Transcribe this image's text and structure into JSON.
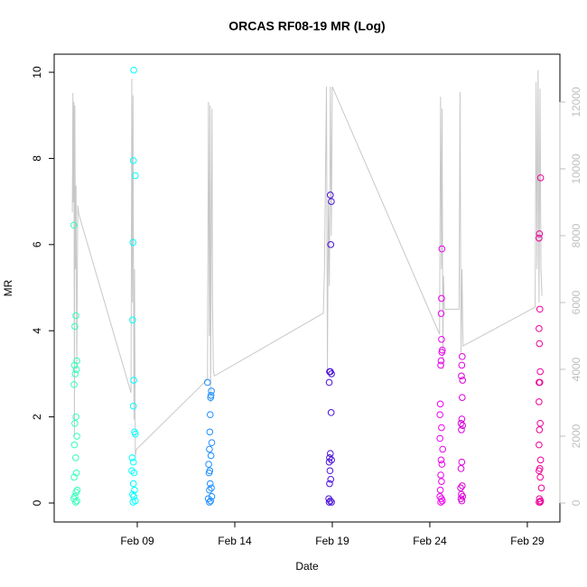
{
  "chart_data": {
    "type": "scatter",
    "title": "ORCAS RF08-19 MR (Log)",
    "x_label": "Date",
    "y_label": "MR",
    "xlim": [
      4.74,
      30.67
    ],
    "xticks": [
      {
        "value": 9,
        "label": "Feb 09"
      },
      {
        "value": 14,
        "label": "Feb 14"
      },
      {
        "value": 19,
        "label": "Feb 19"
      },
      {
        "value": 24,
        "label": "Feb 24"
      },
      {
        "value": 29,
        "label": "Feb 29"
      }
    ],
    "ylim": [
      -0.44,
      10.42
    ],
    "yticks": [
      0,
      2,
      4,
      6,
      8,
      10
    ],
    "y2lim": [
      -568,
      13432
    ],
    "y2ticks": [
      0,
      2000,
      4000,
      6000,
      8000,
      10000,
      12000
    ],
    "series": [
      {
        "color": "#33ffbb",
        "x": [
          5.75,
          5.85,
          5.8,
          5.9,
          5.78,
          5.88,
          5.82,
          5.76,
          5.86,
          5.8,
          5.9,
          5.78,
          5.84,
          5.88,
          5.76,
          5.92,
          5.86,
          5.8,
          5.75,
          5.9,
          5.84
        ],
        "values": [
          6.45,
          4.35,
          4.1,
          3.3,
          3.2,
          3.1,
          3.0,
          2.75,
          2.0,
          1.85,
          1.55,
          1.35,
          1.05,
          0.7,
          0.6,
          0.3,
          0.25,
          0.15,
          0.1,
          0.05,
          0.02
        ]
      },
      {
        "color": "#00ffff",
        "x": [
          8.82,
          8.8,
          8.9,
          8.78,
          8.76,
          8.82,
          8.8,
          8.86,
          8.9,
          8.74,
          8.8,
          8.72,
          8.84,
          8.8,
          8.86,
          8.76,
          8.82,
          8.9,
          8.78
        ],
        "values": [
          10.05,
          7.95,
          7.6,
          6.05,
          4.25,
          2.85,
          2.25,
          1.65,
          1.6,
          1.05,
          0.95,
          0.75,
          0.7,
          0.45,
          0.3,
          0.2,
          0.15,
          0.05,
          0.02
        ]
      },
      {
        "color": "#1e8fff",
        "x": [
          12.6,
          12.8,
          12.78,
          12.76,
          12.74,
          12.72,
          12.82,
          12.7,
          12.78,
          12.66,
          12.72,
          12.68,
          12.74,
          12.8,
          12.7,
          12.82,
          12.64,
          12.76,
          12.7
        ],
        "values": [
          2.8,
          2.6,
          2.5,
          2.45,
          2.05,
          1.65,
          1.4,
          1.25,
          1.1,
          0.9,
          0.75,
          0.7,
          0.45,
          0.35,
          0.3,
          0.15,
          0.1,
          0.05,
          0.02
        ]
      },
      {
        "color": "#4a10d8",
        "x": [
          18.9,
          18.95,
          18.92,
          18.9,
          18.96,
          18.86,
          18.84,
          18.94,
          18.9,
          18.86,
          18.96,
          18.84,
          18.88,
          18.92,
          18.86,
          18.82,
          18.9,
          18.96,
          18.84
        ],
        "values": [
          7.15,
          7.0,
          6.0,
          3.05,
          3.0,
          3.05,
          2.8,
          2.1,
          1.15,
          1.05,
          1.0,
          0.95,
          0.75,
          0.55,
          0.45,
          0.1,
          0.05,
          0.02,
          0.02
        ]
      },
      {
        "color": "#ee00ee",
        "x": [
          24.62,
          24.6,
          24.58,
          24.6,
          24.64,
          24.62,
          24.58,
          24.56,
          24.54,
          24.52,
          24.6,
          24.52,
          24.66,
          24.58,
          24.62,
          24.56,
          24.6,
          24.54,
          24.52,
          24.6,
          24.64,
          24.56
        ],
        "values": [
          5.9,
          4.75,
          4.4,
          3.8,
          3.55,
          3.5,
          3.3,
          3.2,
          2.3,
          2.05,
          1.75,
          1.5,
          1.25,
          1.0,
          0.9,
          0.65,
          0.5,
          0.3,
          0.15,
          0.1,
          0.05,
          0.02
        ]
      },
      {
        "color": "#dd00dd",
        "x": [
          25.66,
          25.64,
          25.62,
          25.68,
          25.66,
          25.64,
          25.6,
          25.68,
          25.62,
          25.64,
          25.6,
          25.66,
          25.58,
          25.62,
          25.68,
          25.6,
          25.64
        ],
        "values": [
          3.4,
          3.2,
          2.95,
          2.85,
          2.45,
          1.95,
          1.85,
          1.8,
          1.7,
          0.95,
          0.8,
          0.4,
          0.35,
          0.2,
          0.15,
          0.1,
          0.05
        ]
      },
      {
        "color": "#ee0099",
        "x": [
          29.68,
          29.62,
          29.6,
          29.64,
          29.6,
          29.62,
          29.66,
          29.6,
          29.64,
          29.6,
          29.66,
          29.62,
          29.6,
          29.68,
          29.64,
          29.6,
          29.66,
          29.72,
          29.62,
          29.68,
          29.6,
          29.66
        ],
        "values": [
          7.55,
          6.25,
          6.15,
          4.5,
          4.05,
          3.7,
          3.05,
          2.8,
          2.8,
          2.35,
          1.85,
          1.7,
          1.35,
          1.0,
          0.8,
          0.75,
          0.6,
          0.35,
          0.1,
          0.05,
          0.02,
          0.02
        ]
      },
      {
        "color": "#c8c8c8",
        "axis": "y2",
        "x": [
          5.67,
          5.7,
          5.72,
          5.75,
          5.78,
          5.8,
          5.83,
          5.86,
          5.9,
          5.95,
          6.0,
          8.68,
          8.72,
          8.75,
          8.78,
          8.8,
          8.83,
          8.86,
          8.9,
          8.95,
          12.6,
          12.65,
          12.7,
          12.73,
          12.76,
          12.8,
          12.83,
          12.86,
          12.9,
          12.95,
          18.54,
          18.6,
          18.7,
          18.75,
          18.8,
          18.85,
          18.9,
          18.95,
          19.0,
          24.5,
          24.55,
          24.6,
          24.63,
          24.67,
          24.7,
          24.75,
          25.5,
          25.55,
          25.6,
          25.65,
          25.7,
          29.4,
          29.45,
          29.5,
          29.55,
          29.6,
          29.65,
          29.7,
          29.75
        ],
        "values": [
          8700,
          12270,
          9000,
          12000,
          2000,
          11900,
          7000,
          9500,
          4000,
          8900,
          8650,
          3300,
          12700,
          6000,
          12200,
          8000,
          2500,
          7000,
          1400,
          1600,
          3700,
          12000,
          5000,
          11900,
          3000,
          9000,
          11800,
          6000,
          4000,
          3800,
          5680,
          7000,
          12460,
          4000,
          9000,
          6500,
          12460,
          8000,
          12460,
          5050,
          12160,
          7000,
          11800,
          4000,
          6800,
          5800,
          5800,
          12300,
          4500,
          7000,
          4700,
          5860,
          12600,
          7000,
          12950,
          6000,
          12400,
          7000,
          6200
        ]
      }
    ]
  }
}
